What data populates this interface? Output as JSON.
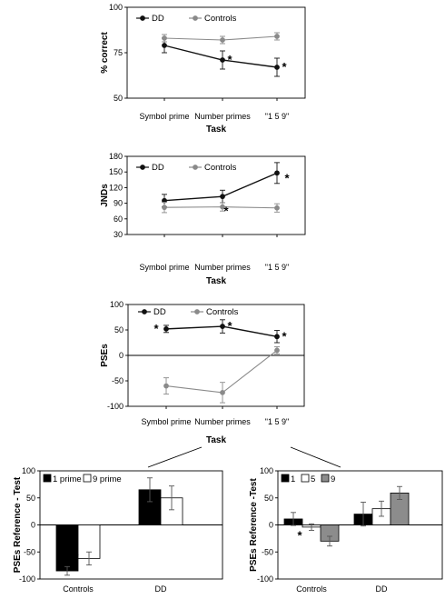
{
  "colors": {
    "dd": "#111111",
    "controls": "#8a8a8a",
    "bar_black": "#000000",
    "bar_white": "#ffffff",
    "bar_gray": "#8c8c8c"
  },
  "chart_data": [
    {
      "type": "line",
      "categories": [
        "Symbol prime",
        "Number primes",
        "\"1 5 9\""
      ],
      "xlabel": "Task",
      "ylabel": "% correct",
      "ylim": [
        50,
        100
      ],
      "yticks": [
        50,
        75,
        100
      ],
      "legend": "top-left",
      "series": [
        {
          "name": "DD",
          "values": [
            79,
            71,
            67
          ],
          "errors": [
            4,
            5,
            5
          ],
          "stars": [
            "",
            "*",
            "*"
          ]
        },
        {
          "name": "Controls",
          "values": [
            83,
            82,
            84
          ],
          "errors": [
            2,
            2,
            2
          ],
          "stars": [
            "",
            "",
            ""
          ]
        }
      ]
    },
    {
      "type": "line",
      "categories": [
        "Symbol prime",
        "Number primes",
        "\"1 5 9\""
      ],
      "xlabel": "Task",
      "ylabel": "JNDs",
      "ylim": [
        30,
        180
      ],
      "yticks": [
        30,
        60,
        90,
        120,
        150,
        180
      ],
      "legend": "top-left",
      "series": [
        {
          "name": "DD",
          "values": [
            95,
            103,
            148
          ],
          "errors": [
            12,
            12,
            20
          ],
          "stars": [
            "",
            "",
            "*"
          ]
        },
        {
          "name": "Controls",
          "values": [
            82,
            83,
            81
          ],
          "errors": [
            10,
            8,
            8
          ],
          "stars": [
            "",
            "*",
            ""
          ]
        }
      ]
    },
    {
      "type": "line",
      "categories": [
        "Symbol prime",
        "Number primes",
        "\"1 5 9\""
      ],
      "xlabel": "Task",
      "ylabel": "PSEs",
      "ylim": [
        -100,
        100
      ],
      "yticks": [
        -100,
        -50,
        0,
        50,
        100
      ],
      "legend": "top-left",
      "series": [
        {
          "name": "DD",
          "values": [
            52,
            57,
            37
          ],
          "errors": [
            7,
            13,
            12
          ],
          "stars": [
            "*",
            "*",
            "*"
          ]
        },
        {
          "name": "Controls",
          "values": [
            -60,
            -73,
            10
          ],
          "errors": [
            16,
            20,
            7
          ],
          "stars": [
            "",
            "",
            ""
          ]
        }
      ]
    },
    {
      "type": "bar",
      "categories": [
        "Controls",
        "DD"
      ],
      "xlabel": "",
      "ylabel": "PSEs Reference - Test",
      "ylim": [
        -100,
        100
      ],
      "yticks": [
        -100,
        -50,
        0,
        50,
        100
      ],
      "legend": "top-left",
      "series": [
        {
          "name": "1 prime",
          "values": [
            -85,
            65
          ],
          "errors": [
            8,
            22
          ],
          "stars": [
            "",
            ""
          ]
        },
        {
          "name": "9 prime",
          "values": [
            -62,
            50
          ],
          "errors": [
            12,
            22
          ],
          "stars": [
            "*",
            ""
          ]
        }
      ]
    },
    {
      "type": "bar",
      "categories": [
        "Controls",
        "DD"
      ],
      "xlabel": "",
      "ylabel": "PSEs Reference -Test",
      "ylim": [
        -100,
        100
      ],
      "yticks": [
        -100,
        -50,
        0,
        50,
        100
      ],
      "legend": "top-left",
      "series": [
        {
          "name": "1",
          "values": [
            11,
            20
          ],
          "errors": [
            12,
            22
          ],
          "stars": [
            "",
            ""
          ]
        },
        {
          "name": "5",
          "values": [
            -4,
            30
          ],
          "errors": [
            6,
            14
          ],
          "stars": [
            "*",
            ""
          ]
        },
        {
          "name": "9",
          "values": [
            -30,
            59
          ],
          "errors": [
            9,
            12
          ],
          "stars": [
            "",
            ""
          ]
        }
      ]
    }
  ]
}
